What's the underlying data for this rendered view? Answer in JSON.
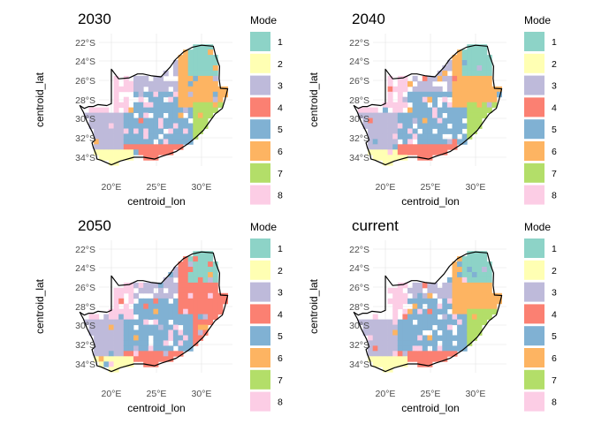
{
  "chart_data": [
    {
      "type": "heatmap",
      "title": "2030",
      "xlabel": "centroid_lon",
      "ylabel": "centroid_lat",
      "x_ticks": [
        "20°E",
        "25°E",
        "30°E"
      ],
      "y_ticks": [
        "22°S",
        "24°S",
        "26°S",
        "28°S",
        "30°S",
        "32°S",
        "34°S"
      ],
      "x_tick_values": [
        20,
        25,
        30
      ],
      "y_tick_values": [
        -22,
        -24,
        -26,
        -28,
        -30,
        -32,
        -34
      ],
      "xlim": [
        16,
        34
      ],
      "ylim": [
        -36,
        -21.5
      ],
      "legend": {
        "title": "Mode",
        "position": "right",
        "labels": [
          "1",
          "2",
          "3",
          "4",
          "5",
          "6",
          "7",
          "8"
        ]
      },
      "mode_by_region": {
        "west": 3,
        "north_west": 3,
        "central": 5,
        "south_west_coast": 2,
        "south_coast": 4,
        "east_coast": 7,
        "north_east": 1,
        "highveld": 6,
        "northern_cape": 8
      }
    },
    {
      "type": "heatmap",
      "title": "2040",
      "xlabel": "centroid_lon",
      "ylabel": "centroid_lat",
      "x_ticks": [
        "20°E",
        "25°E",
        "30°E"
      ],
      "y_ticks": [
        "22°S",
        "24°S",
        "26°S",
        "28°S",
        "30°S",
        "32°S",
        "34°S"
      ],
      "x_tick_values": [
        20,
        25,
        30
      ],
      "y_tick_values": [
        -22,
        -24,
        -26,
        -28,
        -30,
        -32,
        -34
      ],
      "xlim": [
        16,
        34
      ],
      "ylim": [
        -36,
        -21.5
      ],
      "legend": {
        "title": "Mode",
        "position": "right",
        "labels": [
          "1",
          "2",
          "3",
          "4",
          "5",
          "6",
          "7",
          "8"
        ]
      },
      "mode_by_region": {
        "west": 3,
        "north_west": 3,
        "central": 5,
        "south_west_coast": 2,
        "south_coast": 4,
        "east_coast": 7,
        "north_east": 1,
        "highveld": 6,
        "northern_cape": 8
      }
    },
    {
      "type": "heatmap",
      "title": "2050",
      "xlabel": "centroid_lon",
      "ylabel": "centroid_lat",
      "x_ticks": [
        "20°E",
        "25°E",
        "30°E"
      ],
      "y_ticks": [
        "22°S",
        "24°S",
        "26°S",
        "28°S",
        "30°S",
        "32°S",
        "34°S"
      ],
      "x_tick_values": [
        20,
        25,
        30
      ],
      "y_tick_values": [
        -22,
        -24,
        -26,
        -28,
        -30,
        -32,
        -34
      ],
      "xlim": [
        16,
        34
      ],
      "ylim": [
        -36,
        -21.5
      ],
      "legend": {
        "title": "Mode",
        "position": "right",
        "labels": [
          "1",
          "2",
          "3",
          "4",
          "5",
          "6",
          "7",
          "8"
        ]
      },
      "mode_by_region": {
        "west": 3,
        "north_west": 3,
        "central": 5,
        "south_west_coast": 2,
        "south_coast": 4,
        "east_coast": 4,
        "north_east": 1,
        "highveld": 4,
        "northern_cape": 8
      }
    },
    {
      "type": "heatmap",
      "title": "current",
      "xlabel": "centroid_lon",
      "ylabel": "centroid_lat",
      "x_ticks": [
        "20°E",
        "25°E",
        "30°E"
      ],
      "y_ticks": [
        "22°S",
        "24°S",
        "26°S",
        "28°S",
        "30°S",
        "32°S",
        "34°S"
      ],
      "x_tick_values": [
        20,
        25,
        30
      ],
      "y_tick_values": [
        -22,
        -24,
        -26,
        -28,
        -30,
        -32,
        -34
      ],
      "xlim": [
        16,
        34
      ],
      "ylim": [
        -36,
        -21.5
      ],
      "legend": {
        "title": "Mode",
        "position": "right",
        "labels": [
          "1",
          "2",
          "3",
          "4",
          "5",
          "6",
          "7",
          "8"
        ]
      },
      "mode_by_region": {
        "west": 3,
        "north_west": 3,
        "central": 5,
        "south_west_coast": 2,
        "south_coast": 4,
        "east_coast": 7,
        "north_east": 1,
        "highveld": 6,
        "northern_cape": 8
      }
    }
  ],
  "legend_colors": [
    "#8DD3C7",
    "#FFFFB3",
    "#BEBADA",
    "#FB8072",
    "#80B1D3",
    "#FDB462",
    "#B3DE69",
    "#FCCDE5"
  ]
}
